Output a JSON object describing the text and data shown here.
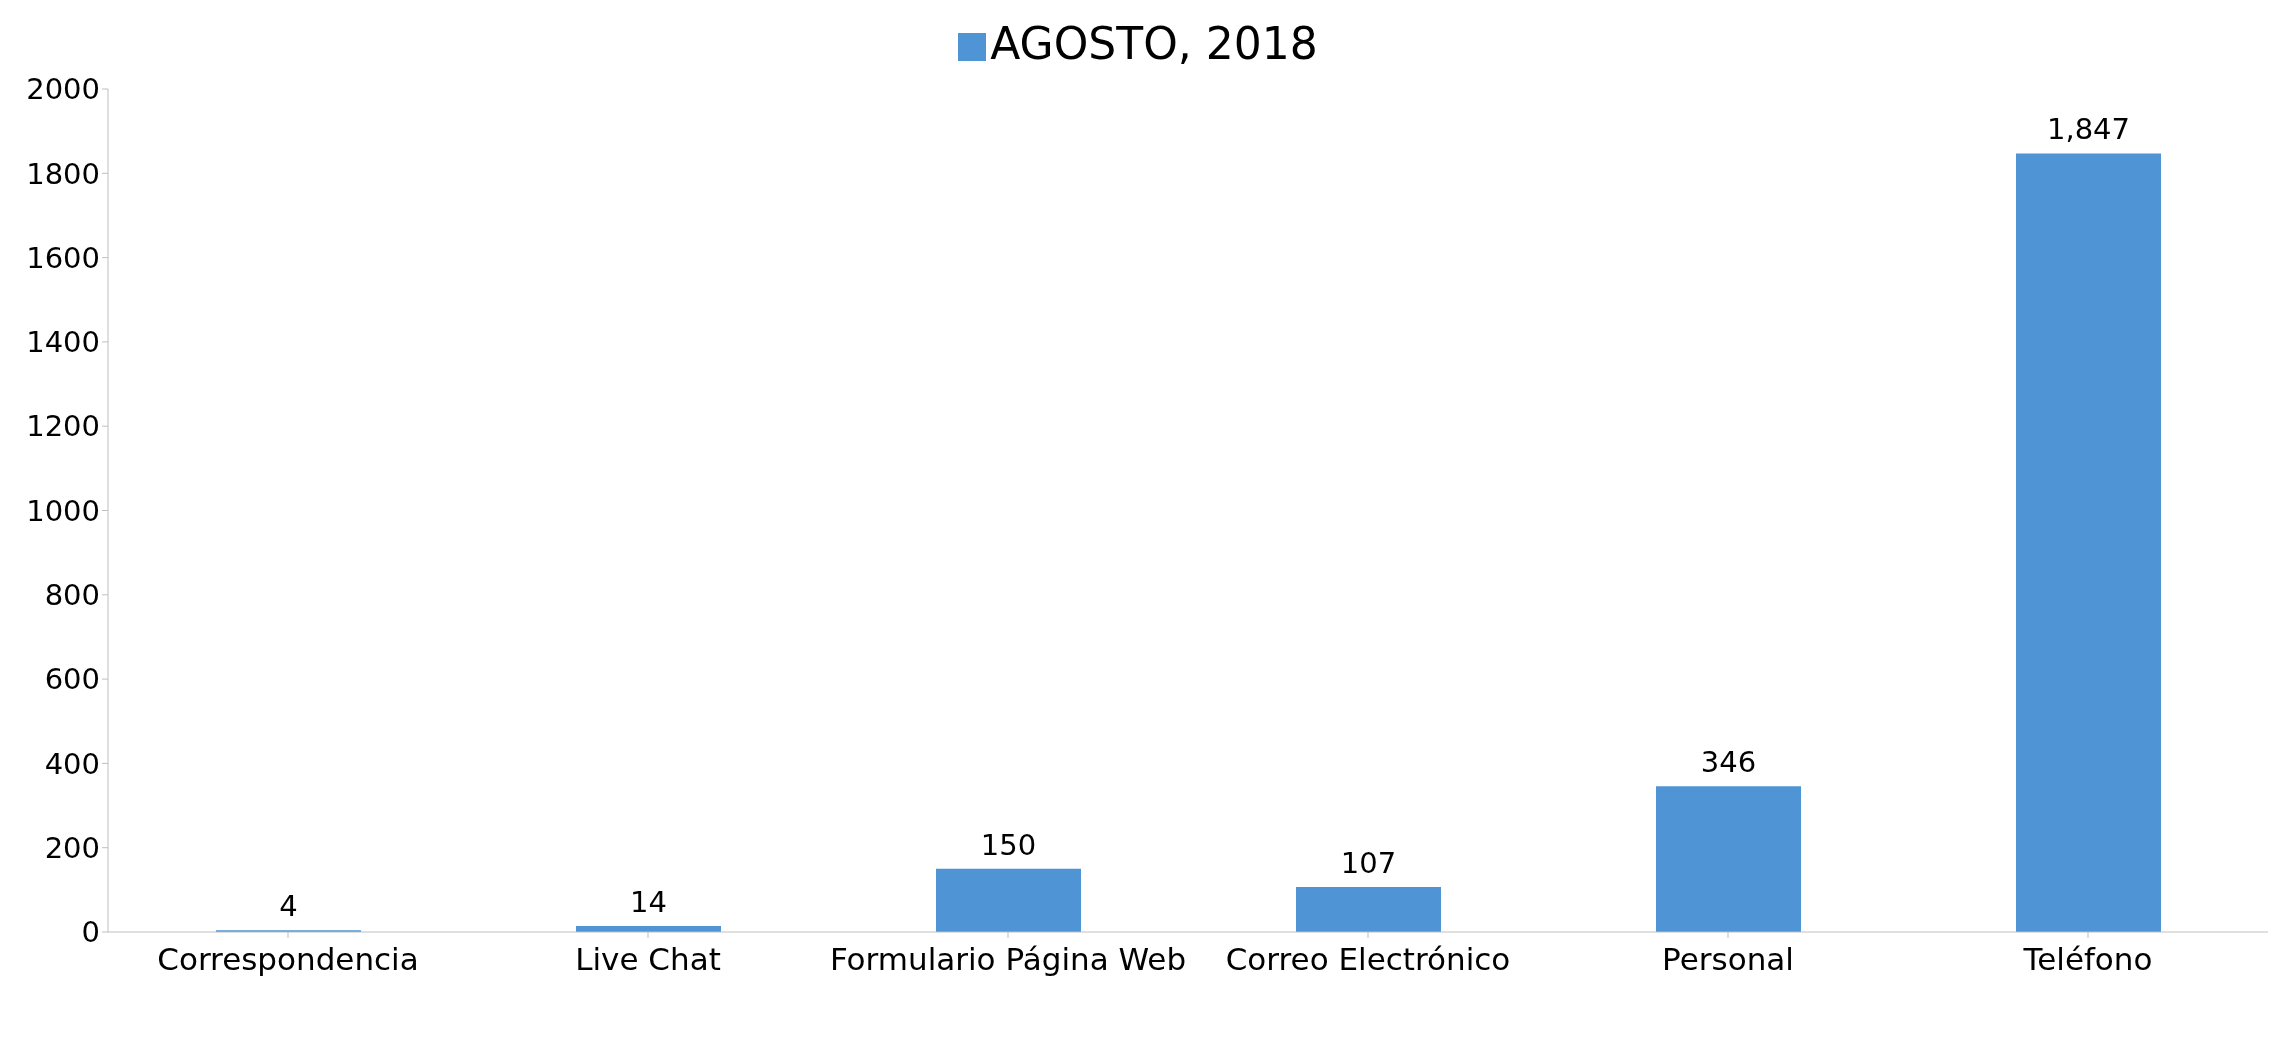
{
  "chart_data": {
    "type": "bar",
    "categories": [
      "Correspondencia",
      "Live Chat",
      "Formulario Página Web",
      "Correo Electrónico",
      "Personal",
      "Teléfono"
    ],
    "series": [
      {
        "name": "AGOSTO, 2018",
        "color": "#4f94d4",
        "values": [
          4,
          14,
          150,
          107,
          346,
          1847
        ],
        "value_labels": [
          "4",
          "14",
          "150",
          "107",
          "346",
          "1,847"
        ]
      }
    ],
    "ylim": [
      0,
      2000
    ],
    "yticks": [
      0,
      200,
      400,
      600,
      800,
      1000,
      1200,
      1400,
      1600,
      1800,
      2000
    ],
    "grid": false,
    "legend": "top"
  }
}
